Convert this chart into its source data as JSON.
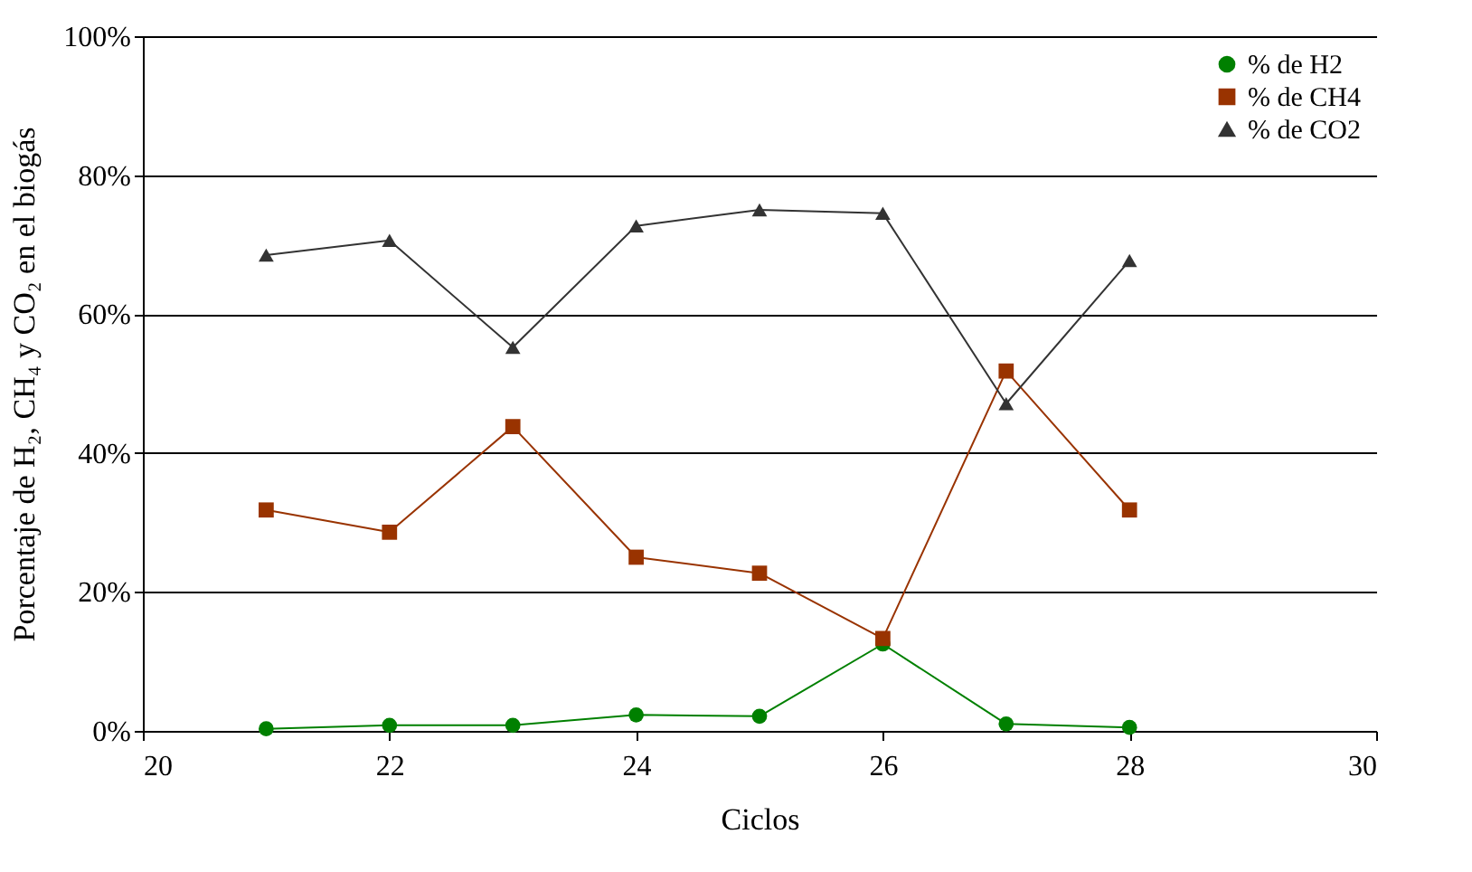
{
  "chart_data": {
    "type": "line",
    "xlabel": "Ciclos",
    "ylabel": "Porcentaje de H₂, CH₄ y CO₂ en el biogás",
    "x": [
      21,
      22,
      23,
      24,
      25,
      26,
      27,
      28
    ],
    "series": [
      {
        "name": "% de H2",
        "color": "#008000",
        "marker": "circle",
        "values": [
          0.3,
          0.8,
          0.8,
          2.3,
          2.1,
          12.5,
          1.0,
          0.5
        ]
      },
      {
        "name": "% de CH4",
        "color": "#993300",
        "marker": "square",
        "values": [
          31.8,
          28.6,
          43.8,
          25.0,
          22.7,
          13.3,
          51.8,
          31.8
        ]
      },
      {
        "name": "% de CO2",
        "color": "#333333",
        "marker": "triangle",
        "values": [
          68.5,
          70.6,
          55.2,
          72.7,
          75.0,
          74.5,
          47.1,
          67.7
        ]
      }
    ],
    "xlim": [
      20,
      30
    ],
    "xticks": [
      20,
      22,
      24,
      26,
      28,
      30
    ],
    "ylim": [
      0,
      100
    ],
    "yticks": [
      {
        "value": 0,
        "label": "0%"
      },
      {
        "value": 20,
        "label": "20%"
      },
      {
        "value": 40,
        "label": "40%"
      },
      {
        "value": 60,
        "label": "60%"
      },
      {
        "value": 80,
        "label": "80%"
      },
      {
        "value": 100,
        "label": "100%"
      }
    ],
    "grid": "y",
    "legend": "top right"
  }
}
